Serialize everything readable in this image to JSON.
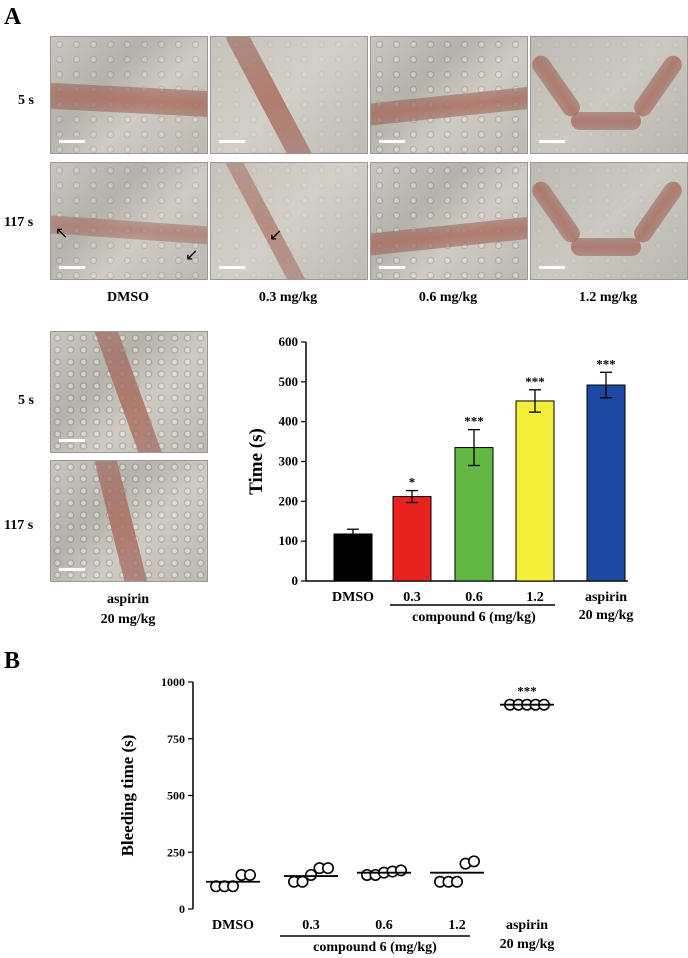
{
  "panels": {
    "a": {
      "letter": "A",
      "row_labels": [
        "5 s",
        "117 s"
      ],
      "column_labels": [
        "DMSO",
        "0.3 mg/kg",
        "0.6 mg/kg",
        "1.2 mg/kg"
      ],
      "aspirin_row_labels": [
        "5 s",
        "117 s"
      ],
      "aspirin_label_line1": "aspirin",
      "aspirin_label_line2": "20 mg/kg"
    },
    "b": {
      "letter": "B"
    }
  },
  "chart_data": [
    {
      "type": "bar",
      "categories": [
        "DMSO",
        "0.3",
        "0.6",
        "1.2",
        "aspirin"
      ],
      "category_line2": [
        "",
        "",
        "",
        "",
        "20 mg/kg"
      ],
      "values": [
        118,
        212,
        335,
        452,
        492
      ],
      "errors": [
        12,
        15,
        45,
        28,
        32
      ],
      "significance": [
        "",
        "*",
        "***",
        "***",
        "***"
      ],
      "colors": [
        "#000000",
        "#e8231f",
        "#62b843",
        "#f2ee3a",
        "#1c4aa3"
      ],
      "ylabel": "Time (s)",
      "yticks": [
        0,
        100,
        200,
        300,
        400,
        500,
        600
      ],
      "ylim": [
        0,
        600
      ],
      "group_label": "compound 6 (mg/kg)"
    },
    {
      "type": "scatter",
      "categories": [
        "DMSO",
        "0.3",
        "0.6",
        "1.2",
        "aspirin"
      ],
      "category_line2": [
        "",
        "",
        "",
        "",
        "20 mg/kg"
      ],
      "points": [
        [
          100,
          100,
          100,
          150,
          150
        ],
        [
          120,
          120,
          150,
          180,
          180
        ],
        [
          150,
          150,
          160,
          165,
          170
        ],
        [
          120,
          120,
          120,
          200,
          210
        ],
        [
          900,
          900,
          900,
          900,
          900
        ]
      ],
      "means": [
        120,
        145,
        160,
        160,
        900
      ],
      "significance": [
        "",
        "",
        "",
        "",
        "***"
      ],
      "ylabel": "Bleeding time (s)",
      "yticks": [
        0,
        250,
        500,
        750,
        1000
      ],
      "ylim": [
        0,
        1000
      ],
      "group_label": "compound 6 (mg/kg)"
    }
  ]
}
